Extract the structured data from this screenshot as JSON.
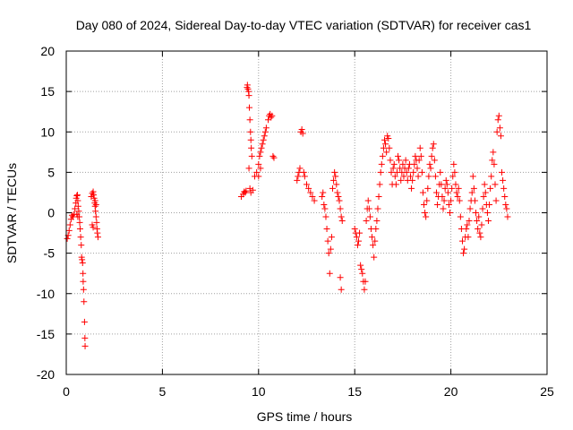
{
  "chart_data": {
    "type": "scatter",
    "title": "Day 080 of 2024, Sidereal Day-to-day VTEC variation (SDTVAR) for receiver cas1",
    "xlabel": "GPS time / hours",
    "ylabel": "SDTVAR / TECUs",
    "xlim": [
      0,
      25
    ],
    "ylim": [
      -20,
      20
    ],
    "xticks": [
      0,
      5,
      10,
      15,
      20,
      25
    ],
    "yticks": [
      -20,
      -15,
      -10,
      -5,
      0,
      5,
      10,
      15,
      20
    ],
    "grid": true,
    "marker": "+",
    "series": [
      {
        "name": "SDTVAR",
        "color": "#ff0000",
        "points": [
          [
            0.05,
            -3.2
          ],
          [
            0.1,
            -2.8
          ],
          [
            0.15,
            -2.2
          ],
          [
            0.2,
            -1.5
          ],
          [
            0.25,
            -0.8
          ],
          [
            0.3,
            -0.3
          ],
          [
            0.35,
            -0.5
          ],
          [
            0.4,
            -0.2
          ],
          [
            0.45,
            0.5
          ],
          [
            0.5,
            1.2
          ],
          [
            0.52,
            1.8
          ],
          [
            0.55,
            2.1
          ],
          [
            0.58,
            2.2
          ],
          [
            0.6,
            1.5
          ],
          [
            0.62,
            0.8
          ],
          [
            0.65,
            0.2
          ],
          [
            0.68,
            -0.5
          ],
          [
            0.7,
            -1.2
          ],
          [
            0.72,
            -2.0
          ],
          [
            0.75,
            -3.0
          ],
          [
            0.78,
            -4.0
          ],
          [
            0.8,
            -5.5
          ],
          [
            0.82,
            -5.8
          ],
          [
            0.85,
            -6.2
          ],
          [
            0.87,
            -7.5
          ],
          [
            0.88,
            -8.5
          ],
          [
            0.9,
            -9.5
          ],
          [
            0.92,
            -11.0
          ],
          [
            0.95,
            -13.5
          ],
          [
            0.97,
            -15.5
          ],
          [
            0.98,
            -16.5
          ],
          [
            0.6,
            -0.5
          ],
          [
            0.55,
            -0.2
          ],
          [
            1.3,
            2.0
          ],
          [
            1.35,
            2.4
          ],
          [
            1.4,
            2.6
          ],
          [
            1.42,
            2.2
          ],
          [
            1.45,
            1.8
          ],
          [
            1.48,
            1.2
          ],
          [
            1.5,
            0.8
          ],
          [
            1.52,
            0.2
          ],
          [
            1.55,
            -0.5
          ],
          [
            1.58,
            -1.2
          ],
          [
            1.6,
            -2.0
          ],
          [
            1.62,
            -2.5
          ],
          [
            1.65,
            -3.0
          ],
          [
            1.35,
            -1.5
          ],
          [
            1.4,
            -1.8
          ],
          [
            1.5,
            1.5
          ],
          [
            1.55,
            1.0
          ],
          [
            9.1,
            2.0
          ],
          [
            9.2,
            2.3
          ],
          [
            9.25,
            2.6
          ],
          [
            9.3,
            2.5
          ],
          [
            9.35,
            2.7
          ],
          [
            9.4,
            15.5
          ],
          [
            9.42,
            15.8
          ],
          [
            9.45,
            15.3
          ],
          [
            9.48,
            15.0
          ],
          [
            9.5,
            14.5
          ],
          [
            9.52,
            13.0
          ],
          [
            9.55,
            11.5
          ],
          [
            9.58,
            10.0
          ],
          [
            9.6,
            9.0
          ],
          [
            9.62,
            8.0
          ],
          [
            9.65,
            7.0
          ],
          [
            9.5,
            5.5
          ],
          [
            9.55,
            3.0
          ],
          [
            9.6,
            2.5
          ],
          [
            9.7,
            2.8
          ],
          [
            9.8,
            4.5
          ],
          [
            9.9,
            5.0
          ],
          [
            10.0,
            6.0
          ],
          [
            10.05,
            7.0
          ],
          [
            10.1,
            7.5
          ],
          [
            10.15,
            8.0
          ],
          [
            10.2,
            8.5
          ],
          [
            10.25,
            9.0
          ],
          [
            10.3,
            9.5
          ],
          [
            10.35,
            10.0
          ],
          [
            10.4,
            10.5
          ],
          [
            10.5,
            11.5
          ],
          [
            10.55,
            12.0
          ],
          [
            10.6,
            12.2
          ],
          [
            10.65,
            11.8
          ],
          [
            10.7,
            12.0
          ],
          [
            10.75,
            7.0
          ],
          [
            10.8,
            6.8
          ],
          [
            10.0,
            4.5
          ],
          [
            10.1,
            5.5
          ],
          [
            12.0,
            4.0
          ],
          [
            12.05,
            4.5
          ],
          [
            12.1,
            5.0
          ],
          [
            12.15,
            5.5
          ],
          [
            12.2,
            10.0
          ],
          [
            12.25,
            10.3
          ],
          [
            12.3,
            9.8
          ],
          [
            12.35,
            5.0
          ],
          [
            12.4,
            4.5
          ],
          [
            12.5,
            3.5
          ],
          [
            12.6,
            3.0
          ],
          [
            12.7,
            2.5
          ],
          [
            12.8,
            2.0
          ],
          [
            12.9,
            1.5
          ],
          [
            13.3,
            2.0
          ],
          [
            13.35,
            2.5
          ],
          [
            13.4,
            1.0
          ],
          [
            13.45,
            0.5
          ],
          [
            13.5,
            -0.5
          ],
          [
            13.55,
            -2.0
          ],
          [
            13.6,
            -3.5
          ],
          [
            13.65,
            -5.0
          ],
          [
            13.7,
            -7.5
          ],
          [
            13.75,
            -4.5
          ],
          [
            13.8,
            -3.0
          ],
          [
            13.85,
            3.0
          ],
          [
            13.9,
            4.0
          ],
          [
            13.95,
            5.0
          ],
          [
            14.0,
            4.5
          ],
          [
            14.05,
            3.5
          ],
          [
            14.1,
            2.5
          ],
          [
            14.15,
            2.0
          ],
          [
            14.2,
            1.5
          ],
          [
            14.25,
            0.5
          ],
          [
            14.3,
            -0.5
          ],
          [
            14.35,
            -1.0
          ],
          [
            14.25,
            -8.0
          ],
          [
            14.3,
            -9.5
          ],
          [
            15.0,
            -2.0
          ],
          [
            15.05,
            -2.5
          ],
          [
            15.1,
            -3.0
          ],
          [
            15.15,
            -4.0
          ],
          [
            15.2,
            -3.5
          ],
          [
            15.25,
            -2.5
          ],
          [
            15.3,
            -6.5
          ],
          [
            15.35,
            -7.0
          ],
          [
            15.4,
            -7.5
          ],
          [
            15.45,
            -8.5
          ],
          [
            15.5,
            -9.5
          ],
          [
            15.55,
            -8.5
          ],
          [
            15.6,
            -1.0
          ],
          [
            15.65,
            0.5
          ],
          [
            15.7,
            1.5
          ],
          [
            15.75,
            0.5
          ],
          [
            15.8,
            -0.5
          ],
          [
            15.85,
            -2.0
          ],
          [
            15.9,
            -3.0
          ],
          [
            15.95,
            -4.0
          ],
          [
            16.0,
            -5.5
          ],
          [
            16.05,
            -3.5
          ],
          [
            16.1,
            -2.0
          ],
          [
            16.15,
            -1.0
          ],
          [
            16.2,
            0.5
          ],
          [
            16.25,
            2.0
          ],
          [
            16.3,
            3.5
          ],
          [
            16.35,
            5.0
          ],
          [
            16.4,
            6.0
          ],
          [
            16.45,
            7.0
          ],
          [
            16.5,
            8.0
          ],
          [
            16.55,
            9.0
          ],
          [
            16.6,
            8.5
          ],
          [
            16.65,
            7.5
          ],
          [
            16.7,
            9.5
          ],
          [
            16.75,
            9.2
          ],
          [
            16.8,
            8.0
          ],
          [
            16.85,
            6.5
          ],
          [
            16.9,
            5.0
          ],
          [
            16.95,
            3.5
          ],
          [
            17.0,
            5.5
          ],
          [
            17.05,
            6.0
          ],
          [
            17.1,
            4.5
          ],
          [
            17.15,
            3.5
          ],
          [
            17.2,
            5.0
          ],
          [
            17.25,
            7.0
          ],
          [
            17.3,
            6.5
          ],
          [
            17.35,
            5.5
          ],
          [
            17.4,
            4.0
          ],
          [
            17.45,
            5.0
          ],
          [
            17.5,
            6.0
          ],
          [
            17.55,
            4.5
          ],
          [
            17.6,
            5.5
          ],
          [
            17.65,
            6.5
          ],
          [
            17.7,
            5.0
          ],
          [
            17.75,
            4.0
          ],
          [
            17.8,
            5.5
          ],
          [
            17.85,
            6.0
          ],
          [
            17.9,
            4.5
          ],
          [
            17.95,
            3.0
          ],
          [
            18.0,
            4.0
          ],
          [
            18.05,
            5.0
          ],
          [
            18.1,
            6.0
          ],
          [
            18.15,
            7.0
          ],
          [
            18.2,
            6.5
          ],
          [
            18.25,
            5.5
          ],
          [
            18.3,
            4.5
          ],
          [
            18.35,
            6.5
          ],
          [
            18.4,
            8.0
          ],
          [
            18.45,
            7.0
          ],
          [
            18.5,
            5.0
          ],
          [
            18.55,
            2.5
          ],
          [
            18.6,
            1.0
          ],
          [
            18.65,
            0.0
          ],
          [
            18.7,
            -0.5
          ],
          [
            18.75,
            1.5
          ],
          [
            18.8,
            3.0
          ],
          [
            18.85,
            4.5
          ],
          [
            18.9,
            6.0
          ],
          [
            18.95,
            5.5
          ],
          [
            19.0,
            7.0
          ],
          [
            19.05,
            8.0
          ],
          [
            19.1,
            8.5
          ],
          [
            19.15,
            6.5
          ],
          [
            19.2,
            4.5
          ],
          [
            19.25,
            2.5
          ],
          [
            19.3,
            1.0
          ],
          [
            19.35,
            2.0
          ],
          [
            19.4,
            3.5
          ],
          [
            19.45,
            5.0
          ],
          [
            19.5,
            3.5
          ],
          [
            19.55,
            2.0
          ],
          [
            19.6,
            0.5
          ],
          [
            19.65,
            1.5
          ],
          [
            19.7,
            3.0
          ],
          [
            19.75,
            4.0
          ],
          [
            19.8,
            3.5
          ],
          [
            19.85,
            2.5
          ],
          [
            19.9,
            1.0
          ],
          [
            19.95,
            0.0
          ],
          [
            20.0,
            1.5
          ],
          [
            20.05,
            3.0
          ],
          [
            20.1,
            4.5
          ],
          [
            20.15,
            6.0
          ],
          [
            20.2,
            5.0
          ],
          [
            20.25,
            3.5
          ],
          [
            20.3,
            2.5
          ],
          [
            20.35,
            2.0
          ],
          [
            20.4,
            3.0
          ],
          [
            20.45,
            1.5
          ],
          [
            20.5,
            -0.5
          ],
          [
            20.55,
            -2.0
          ],
          [
            20.6,
            -3.5
          ],
          [
            20.65,
            -5.0
          ],
          [
            20.7,
            -4.5
          ],
          [
            20.75,
            -3.0
          ],
          [
            20.8,
            -2.0
          ],
          [
            20.85,
            -1.5
          ],
          [
            20.9,
            -3.0
          ],
          [
            20.95,
            -1.0
          ],
          [
            21.0,
            0.5
          ],
          [
            21.05,
            1.5
          ],
          [
            21.1,
            2.5
          ],
          [
            21.15,
            4.5
          ],
          [
            21.2,
            3.0
          ],
          [
            21.25,
            1.5
          ],
          [
            21.3,
            0.0
          ],
          [
            21.35,
            -1.0
          ],
          [
            21.4,
            -2.0
          ],
          [
            21.45,
            -0.5
          ],
          [
            21.5,
            -2.5
          ],
          [
            21.55,
            -3.0
          ],
          [
            21.6,
            -1.5
          ],
          [
            21.65,
            0.5
          ],
          [
            21.7,
            2.0
          ],
          [
            21.75,
            3.5
          ],
          [
            21.8,
            2.5
          ],
          [
            21.85,
            1.0
          ],
          [
            21.9,
            0.0
          ],
          [
            21.95,
            -1.0
          ],
          [
            22.0,
            1.0
          ],
          [
            22.05,
            3.0
          ],
          [
            22.1,
            4.5
          ],
          [
            22.15,
            6.5
          ],
          [
            22.2,
            7.5
          ],
          [
            22.25,
            6.0
          ],
          [
            22.3,
            3.5
          ],
          [
            22.35,
            1.5
          ],
          [
            22.4,
            10.0
          ],
          [
            22.45,
            11.5
          ],
          [
            22.5,
            12.0
          ],
          [
            22.55,
            10.5
          ],
          [
            22.6,
            9.5
          ],
          [
            22.65,
            5.0
          ],
          [
            22.7,
            4.0
          ],
          [
            22.75,
            3.0
          ],
          [
            22.8,
            2.0
          ],
          [
            22.85,
            1.0
          ],
          [
            22.9,
            0.5
          ],
          [
            22.95,
            -0.5
          ]
        ]
      }
    ]
  }
}
